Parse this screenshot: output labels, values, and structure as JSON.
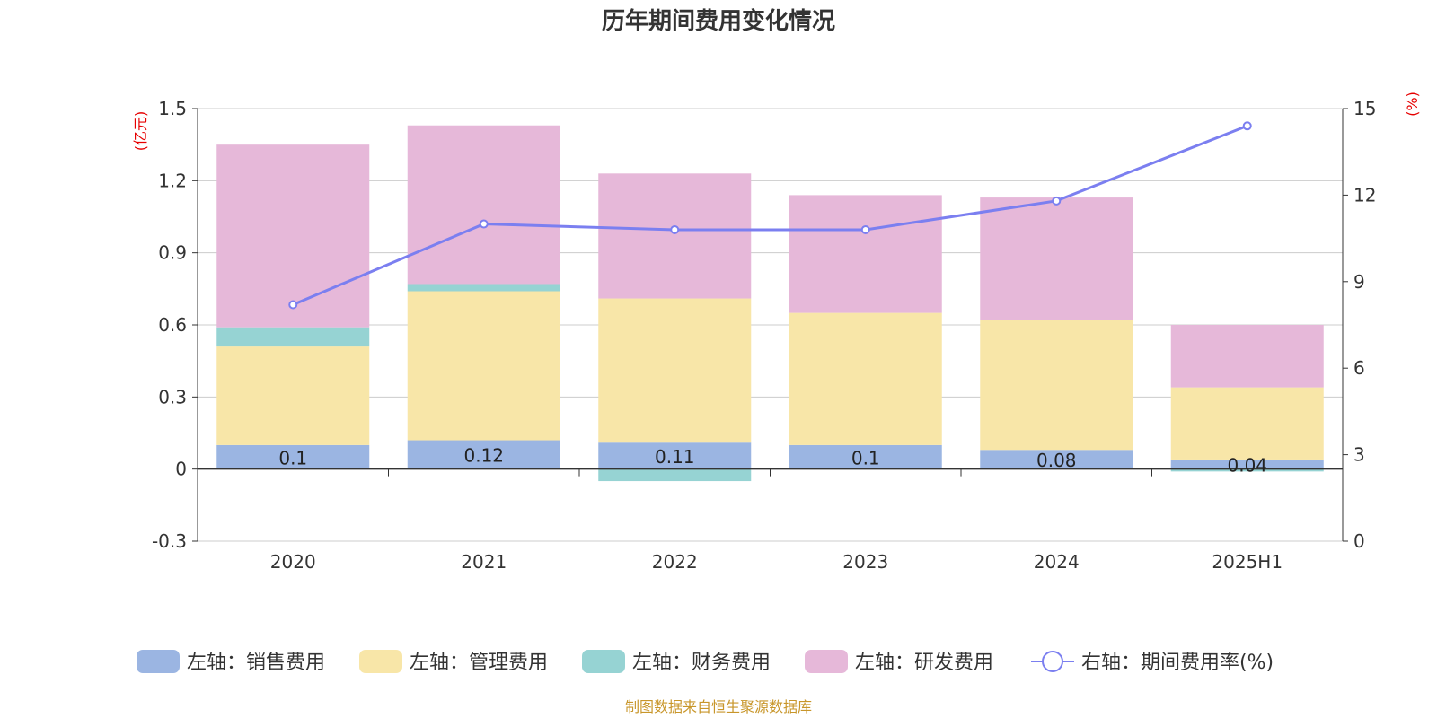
{
  "chart_data": {
    "type": "bar",
    "stacked": true,
    "title": "历年期间费用变化情况",
    "categories": [
      "2020",
      "2021",
      "2022",
      "2023",
      "2024",
      "2025H1"
    ],
    "y_left": {
      "unit": "(亿元)",
      "min": -0.3,
      "max": 1.5,
      "ticks": [
        -0.3,
        0,
        0.3,
        0.6,
        0.9,
        1.2,
        1.5
      ],
      "tick_labels": [
        "-0.3",
        "0",
        "0.3",
        "0.6",
        "0.9",
        "1.2",
        "1.5"
      ]
    },
    "y_right": {
      "unit": "(%)",
      "min": 0,
      "max": 15,
      "ticks": [
        0,
        3,
        6,
        9,
        12,
        15
      ],
      "tick_labels": [
        "0",
        "3",
        "6",
        "9",
        "12",
        "15"
      ]
    },
    "grid": true,
    "legend_position": "bottom",
    "series": [
      {
        "name": "左轴：销售费用",
        "axis": "left",
        "color": "#9bb5e2",
        "values": [
          0.1,
          0.12,
          0.11,
          0.1,
          0.08,
          0.04
        ],
        "labels": [
          "0.1",
          "0.12",
          "0.11",
          "0.1",
          "0.08",
          "0.04"
        ]
      },
      {
        "name": "左轴：管理费用",
        "axis": "left",
        "color": "#f8e6a8",
        "values": [
          0.41,
          0.62,
          0.6,
          0.55,
          0.54,
          0.3
        ]
      },
      {
        "name": "左轴：财务费用",
        "axis": "left",
        "color": "#96d3d3",
        "values": [
          0.08,
          0.03,
          -0.05,
          0.0,
          0.0,
          -0.01
        ]
      },
      {
        "name": "左轴：研发费用",
        "axis": "left",
        "color": "#e6b8d9",
        "values": [
          0.76,
          0.66,
          0.52,
          0.49,
          0.51,
          0.26
        ]
      },
      {
        "name": "右轴：期间费用率(%)",
        "axis": "right",
        "type": "line",
        "color": "#7b7ff0",
        "values": [
          8.2,
          11.0,
          10.8,
          10.8,
          11.8,
          14.4
        ]
      }
    ],
    "source": "制图数据来自恒生聚源数据库"
  }
}
